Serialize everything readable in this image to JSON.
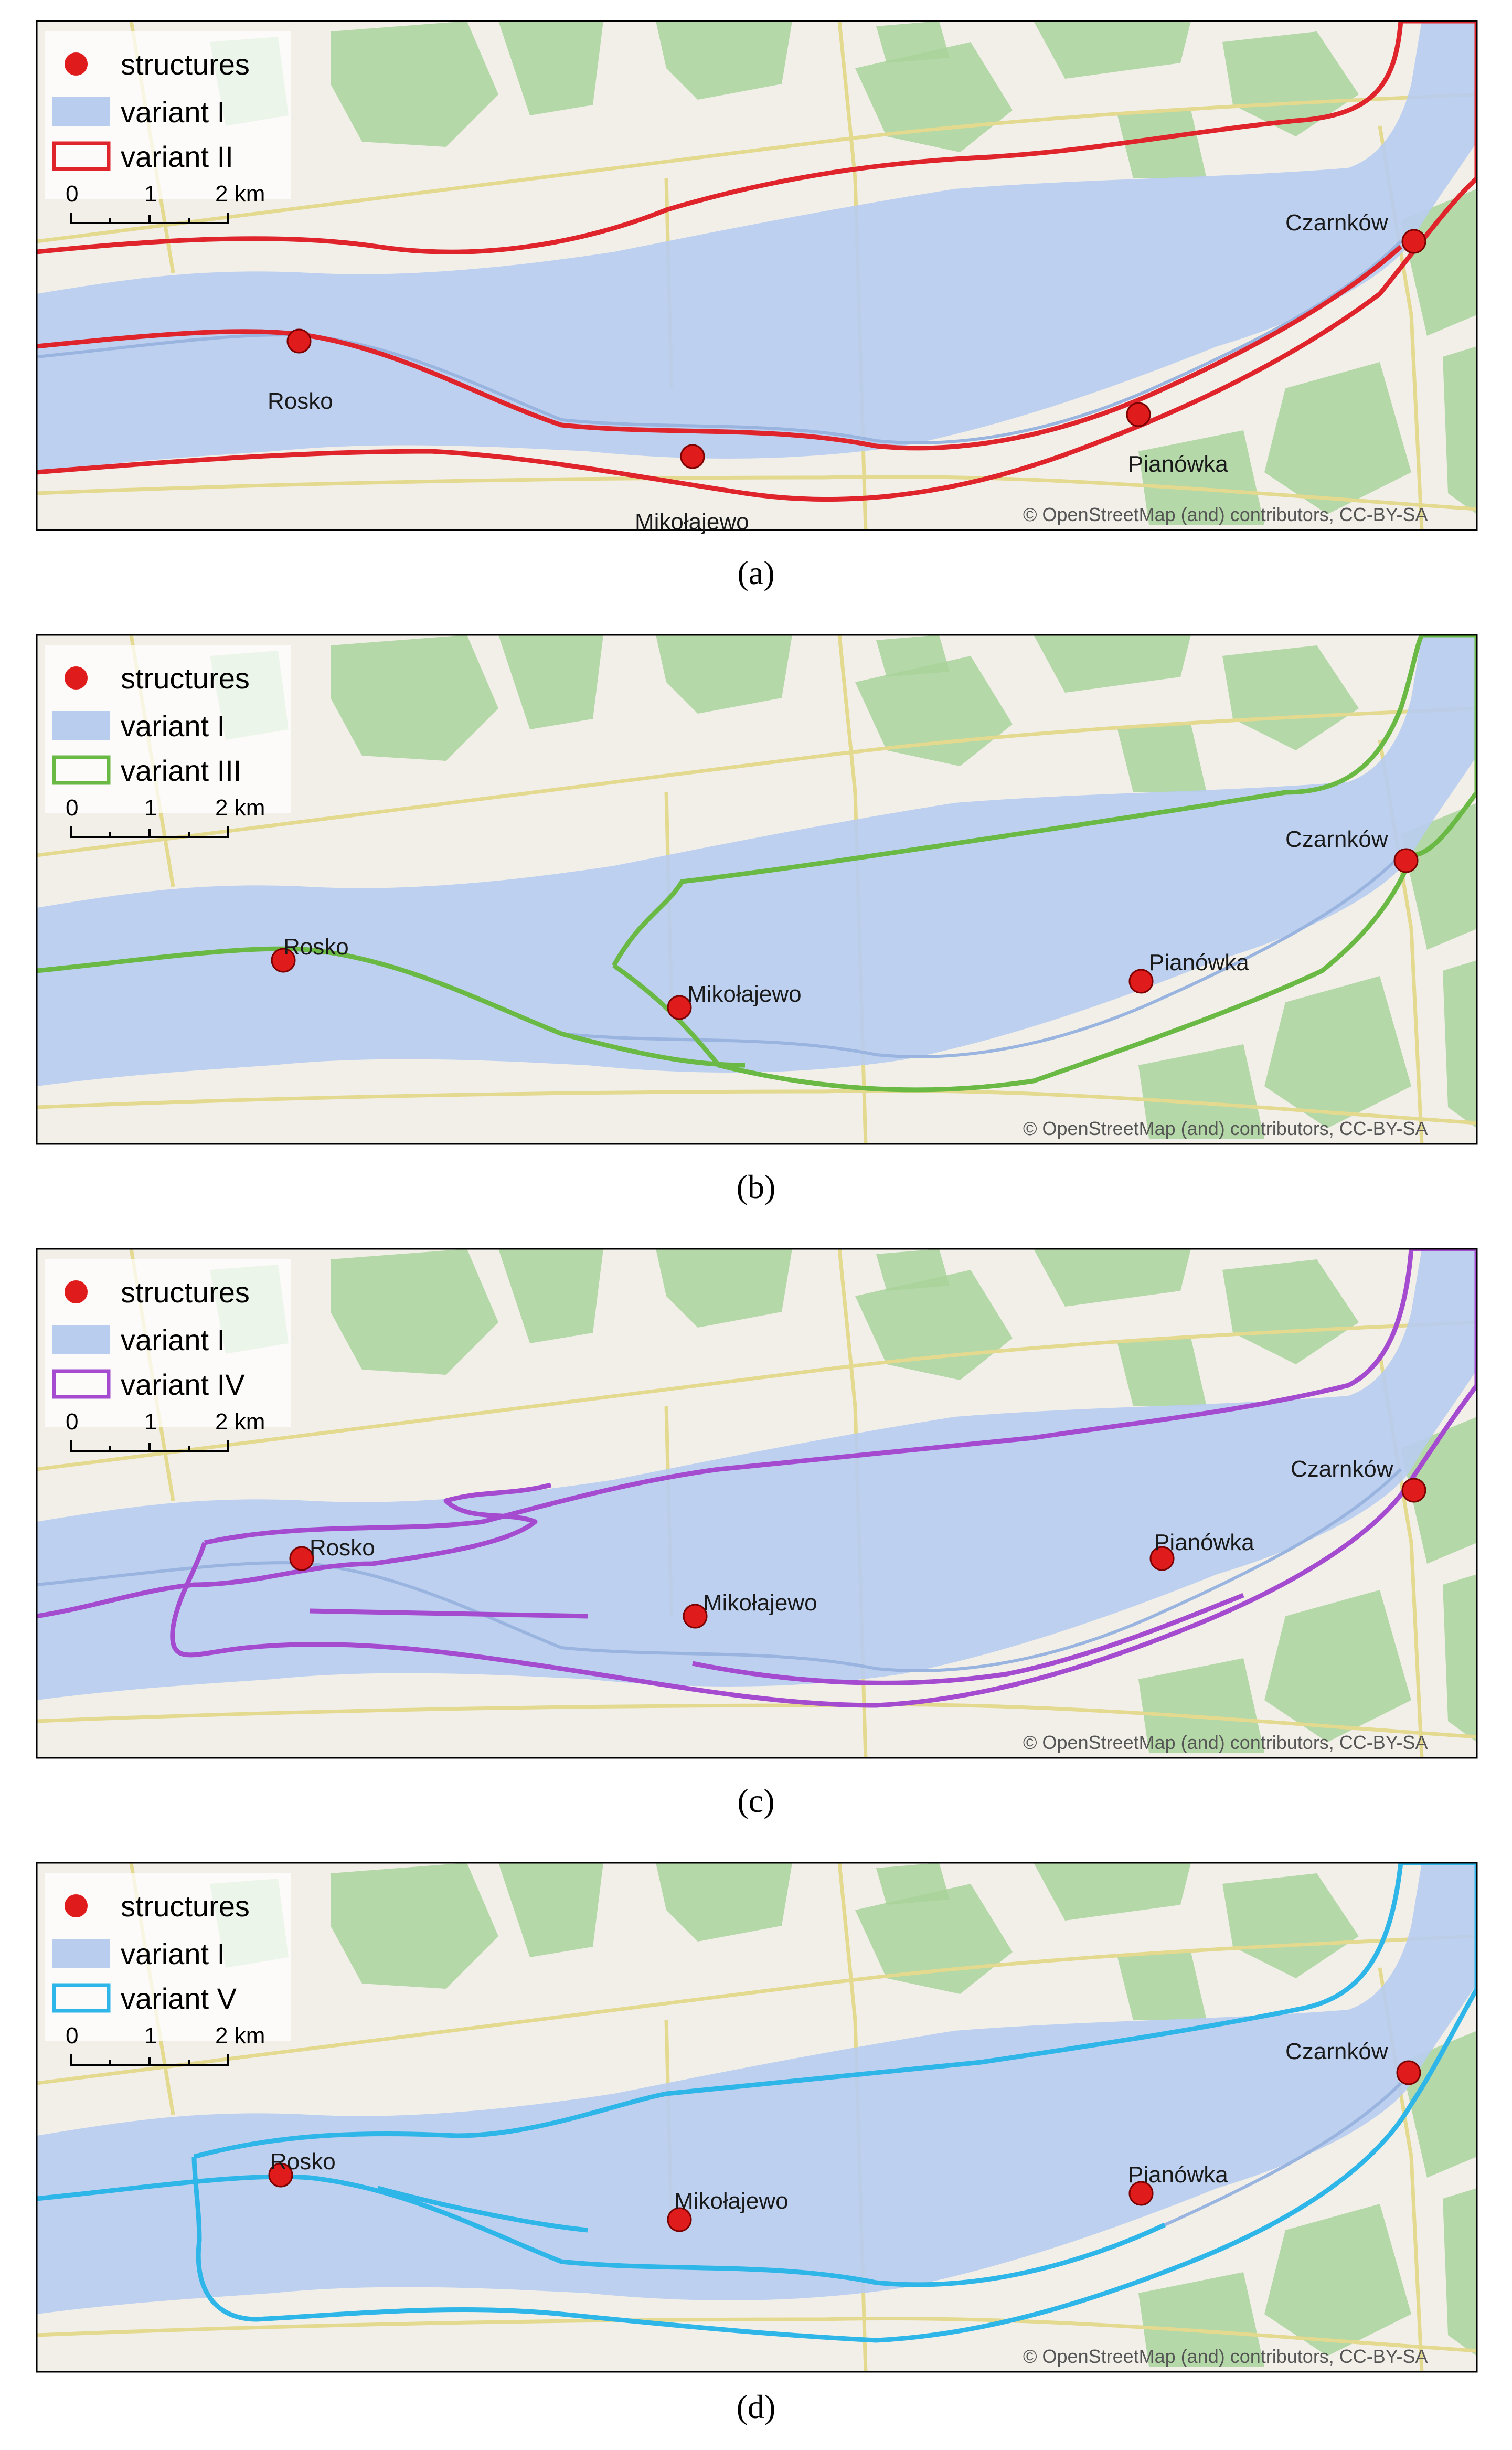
{
  "legend_common": {
    "structures": "structures",
    "variant_I": "variant I"
  },
  "colors": {
    "structures": "#e01b1b",
    "variant_I": "#b9cdef",
    "land": "#f2efe9",
    "forest": "#a9d39b",
    "road": "#e3d98f",
    "variant_II": "#e0242b",
    "variant_III": "#6ab945",
    "variant_IV": "#a44bd0",
    "variant_V": "#2fb6e8"
  },
  "scale": {
    "t0": "0",
    "t1": "1",
    "t2": "2 km"
  },
  "places": {
    "czarnkow": "Czarnków",
    "rosko": "Rosko",
    "mikolajewo": "Mikołajewo",
    "pianowka": "Pianówka"
  },
  "attribution": "© OpenStreetMap (and) contributors, CC-BY-SA",
  "panels": [
    {
      "caption": "(a)",
      "variant_label": "variant II",
      "variant_color_key": "variant_II"
    },
    {
      "caption": "(b)",
      "variant_label": "variant III",
      "variant_color_key": "variant_III"
    },
    {
      "caption": "(c)",
      "variant_label": "variant IV",
      "variant_color_key": "variant_IV"
    },
    {
      "caption": "(d)",
      "variant_label": "variant V",
      "variant_color_key": "variant_V"
    }
  ]
}
